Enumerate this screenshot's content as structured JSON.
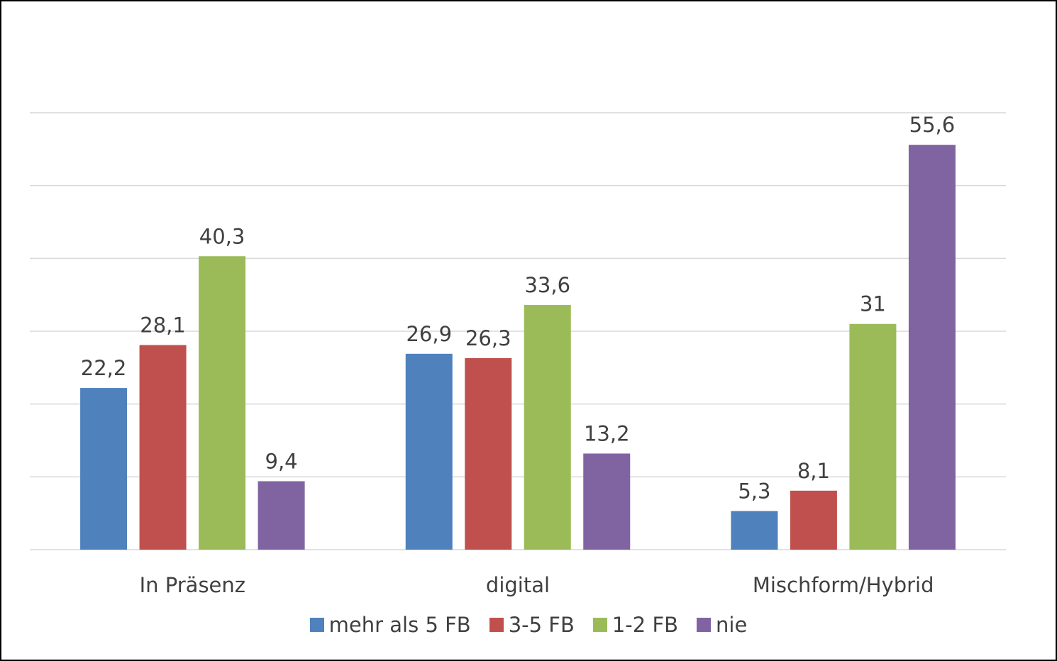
{
  "chart_data": {
    "type": "bar",
    "categories": [
      "In Präsenz",
      "digital",
      "Mischform/Hybrid"
    ],
    "series": [
      {
        "name": "mehr als 5 FB",
        "color": "#4F81BD",
        "values": [
          22.2,
          26.9,
          5.3
        ],
        "labels": [
          "22,2",
          "26,9",
          "5,3"
        ]
      },
      {
        "name": "3-5 FB",
        "color": "#C0504D",
        "values": [
          28.1,
          26.3,
          8.1
        ],
        "labels": [
          "28,1",
          "26,3",
          "8,1"
        ]
      },
      {
        "name": "1-2 FB",
        "color": "#9BBB59",
        "values": [
          40.3,
          33.6,
          31
        ],
        "labels": [
          "40,3",
          "33,6",
          "31"
        ]
      },
      {
        "name": "nie",
        "color": "#8064A2",
        "values": [
          9.4,
          13.2,
          55.6
        ],
        "labels": [
          "9,4",
          "13,2",
          "55,6"
        ]
      }
    ],
    "ylim": [
      0,
      60
    ],
    "gridlines": [
      0,
      10,
      20,
      30,
      40,
      50,
      60
    ],
    "y_ticks_shown": false,
    "grid": true,
    "legend_position": "bottom"
  }
}
